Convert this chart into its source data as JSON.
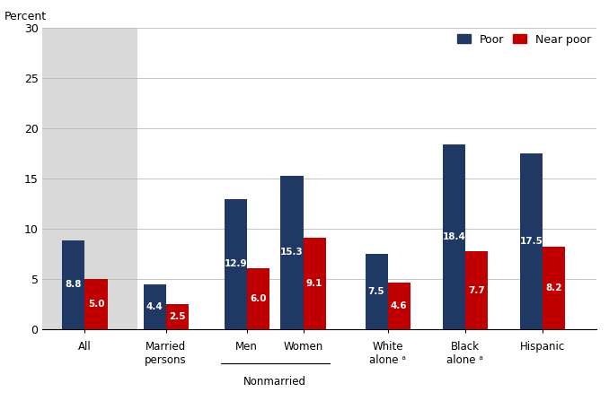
{
  "groups": [
    {
      "label": "All",
      "poor": 8.8,
      "near_poor": 5.0,
      "shaded": true
    },
    {
      "label": "Married\npersons",
      "poor": 4.4,
      "near_poor": 2.5,
      "shaded": false
    },
    {
      "label": "Men",
      "poor": 12.9,
      "near_poor": 6.0,
      "shaded": false,
      "nonmarried": true
    },
    {
      "label": "Women",
      "poor": 15.3,
      "near_poor": 9.1,
      "shaded": false,
      "nonmarried": true
    },
    {
      "label": "White\nalone ᵃ",
      "poor": 7.5,
      "near_poor": 4.6,
      "shaded": false
    },
    {
      "label": "Black\nalone ᵃ",
      "poor": 18.4,
      "near_poor": 7.7,
      "shaded": false
    },
    {
      "label": "Hispanic",
      "poor": 17.5,
      "near_poor": 8.2,
      "shaded": false
    }
  ],
  "nonmarried_label": "Nonmarried",
  "poor_color": "#1f3864",
  "near_poor_color": "#c00000",
  "shaded_bg_color": "#d9d9d9",
  "bar_width": 0.32,
  "ylim": [
    0,
    30
  ],
  "yticks": [
    0,
    5,
    10,
    15,
    20,
    25,
    30
  ],
  "percent_label": "Percent",
  "legend_poor": "Poor",
  "legend_near_poor": "Near poor",
  "grid_color": "#bbbbbb",
  "label_fontsize": 8.5,
  "value_fontsize": 7.5,
  "axis_fontsize": 9,
  "group_centers": [
    0.55,
    1.7,
    2.85,
    3.65,
    4.85,
    5.95,
    7.05
  ]
}
